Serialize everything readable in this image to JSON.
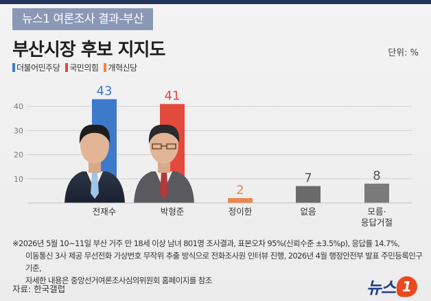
{
  "header": {
    "tag": "뉴스1 여론조사 결과-부산",
    "title": "부산시장 후보 지지도",
    "unit": "단위: %"
  },
  "legend": [
    {
      "label": "더불어민주당",
      "color": "#3d7ac9"
    },
    {
      "label": "국민의힘",
      "color": "#e34a3e"
    },
    {
      "label": "개혁신당",
      "color": "#f0844a"
    }
  ],
  "chart_data": {
    "type": "bar",
    "categories": [
      "전재수",
      "박형준",
      "정이한",
      "없음",
      "모름·\n응답거절"
    ],
    "values": [
      43,
      41,
      2,
      7,
      8
    ],
    "colors": [
      "#3d7ac9",
      "#e34a3e",
      "#f0844a",
      "#6a6a6a",
      "#7a7a7a"
    ],
    "value_label_colors": [
      "#3d7ac9",
      "#e34a3e",
      "#f0844a",
      "#555555",
      "#555555"
    ],
    "yticks": [
      10,
      20,
      30,
      40
    ],
    "ylim": [
      0,
      50
    ],
    "grid": true,
    "xlabel": "",
    "ylabel": ""
  },
  "notes": [
    "※2026년 5월 10~11일 부산 거주 만 18세 이상 남녀 801명 조사결과, 표본오차 95%(신뢰수준 ±3.5%p), 응답률 14.7%,",
    "이동통신 3사 제공 무선전화 가상번호 무작위 추출 방식으로 전화조사원 인터뷰 진행, 2026년 4월 행정안전부 발표 주민등록인구 기준,",
    "자세한 내용은 중앙선거여론조사심의위원회 홈페이지를 참조"
  ],
  "source": "자료: 한국갤럽",
  "logo": {
    "text": "뉴스",
    "badge": "1"
  }
}
